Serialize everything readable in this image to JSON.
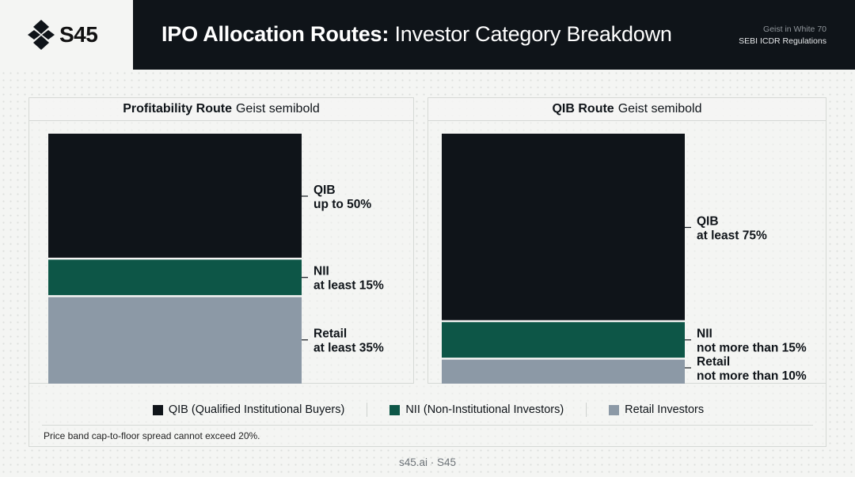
{
  "brand": {
    "name": "S45"
  },
  "header": {
    "title_strong": "IPO Allocation Routes:",
    "title_rest": "Investor Category Breakdown",
    "meta_line1": "Geist in White 70",
    "meta_line2": "SEBI ICDR Regulations"
  },
  "colors": {
    "qib": "#0f1419",
    "nii": "#0d5647",
    "retail": "#8c99a6",
    "background": "#f4f5f3"
  },
  "chart_data": [
    {
      "type": "bar",
      "title_bold": "Profitability Route",
      "title_rest": "Geist semibold",
      "stacked": true,
      "series": [
        {
          "name": "QIB",
          "value": 50,
          "label_line1": "QIB",
          "label_line2": "up to 50%"
        },
        {
          "name": "NII",
          "value": 15,
          "label_line1": "NII",
          "label_line2": "at least 15%"
        },
        {
          "name": "Retail",
          "value": 35,
          "label_line1": "Retail",
          "label_line2": "at least 35%"
        }
      ]
    },
    {
      "type": "bar",
      "title_bold": "QIB Route",
      "title_rest": "Geist semibold",
      "stacked": true,
      "series": [
        {
          "name": "QIB",
          "value": 75,
          "label_line1": "QIB",
          "label_line2": "at least 75%"
        },
        {
          "name": "NII",
          "value": 15,
          "label_line1": "NII",
          "label_line2": "not more than 15%"
        },
        {
          "name": "Retail",
          "value": 10,
          "label_line1": "Retail",
          "label_line2": "not more than 10%"
        }
      ]
    }
  ],
  "legend": [
    {
      "label": "QIB (Qualified Institutional Buyers)",
      "color": "#0f1419"
    },
    {
      "label": "NII (Non-Institutional Investors)",
      "color": "#0d5647"
    },
    {
      "label": "Retail Investors",
      "color": "#8c99a6"
    }
  ],
  "note": "Price band cap-to-floor spread cannot exceed 20%.",
  "footer": "s45.ai · S45"
}
